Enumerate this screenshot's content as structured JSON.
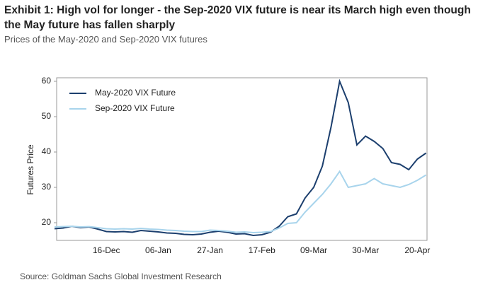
{
  "header": {
    "title": "Exhibit 1: High vol for longer - the Sep-2020 VIX future is near its March high even though the May future has fallen sharply",
    "subtitle": "Prices of the May-2020 and Sep-2020 VIX futures"
  },
  "chart_data": {
    "type": "line",
    "y_label": "Futures Price",
    "categories": [
      null,
      null,
      null,
      null,
      null,
      null,
      "16-Dec",
      null,
      null,
      null,
      null,
      null,
      "06-Jan",
      null,
      null,
      null,
      null,
      null,
      "27-Jan",
      null,
      null,
      null,
      null,
      null,
      "17-Feb",
      null,
      null,
      null,
      null,
      null,
      "09-Mar",
      null,
      null,
      null,
      null,
      null,
      "30-Mar",
      null,
      null,
      null,
      null,
      null,
      "20-Apr",
      null
    ],
    "series": [
      {
        "name": "May-2020 VIX Future",
        "color": "#1c3f6e",
        "values": [
          18.3,
          18.5,
          19,
          18.6,
          18.8,
          18.2,
          17.5,
          17.4,
          17.5,
          17.3,
          17.8,
          17.6,
          17.4,
          17.1,
          17.0,
          16.7,
          16.6,
          16.8,
          17.3,
          17.6,
          17.3,
          16.8,
          16.9,
          16.4,
          16.6,
          17.3,
          19,
          21.7,
          22.5,
          27,
          30,
          36,
          47,
          60,
          54,
          42,
          44.5,
          43,
          41,
          37,
          36.5,
          35,
          38,
          39.7
        ]
      },
      {
        "name": "Sep-2020 VIX Future",
        "color": "#a8d4ec",
        "values": [
          18.8,
          18.9,
          19,
          18.8,
          18.9,
          18.6,
          18.3,
          18.2,
          18.3,
          18.2,
          18.4,
          18.2,
          18.1,
          17.9,
          17.8,
          17.6,
          17.5,
          17.5,
          17.9,
          17.8,
          17.6,
          17.3,
          17.4,
          17.2,
          17.3,
          17.5,
          18.5,
          19.8,
          20,
          23,
          25.5,
          28,
          31,
          34.5,
          30,
          30.5,
          31,
          32.5,
          31,
          30.5,
          30,
          30.8,
          32,
          33.5
        ]
      }
    ],
    "ylim": [
      15,
      61
    ],
    "yticks": [
      20,
      30,
      40,
      50,
      60
    ],
    "grid": false,
    "legend": "top-left"
  },
  "footer": {
    "source": "Source: Goldman Sachs Global Investment Research"
  }
}
